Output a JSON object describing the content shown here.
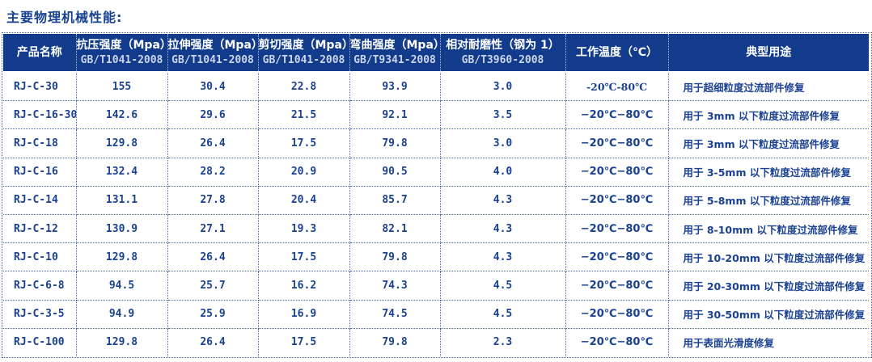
{
  "title": "主要物理机械性能:",
  "colors": {
    "header_bg": "#123b8c",
    "header_text": "#ffffff",
    "header_subtext": "#ccd6ea",
    "body_text": "#1a4192",
    "border": "#4a67ae"
  },
  "table": {
    "headers": [
      {
        "line1": "产品名称",
        "line2": ""
      },
      {
        "line1": "抗压强度（Mpa）",
        "line2": "GB/T1041-2008"
      },
      {
        "line1": "拉伸强度（Mpa）",
        "line2": "GB/T1041-2008"
      },
      {
        "line1": "剪切强度（Mpa）",
        "line2": "GB/T1041-2008"
      },
      {
        "line1": "弯曲强度（Mpa）",
        "line2": "GB/T9341-2008"
      },
      {
        "line1": "相对耐磨性（钢为 1）",
        "line2": "GB/T3960-2008"
      },
      {
        "line1": "工作温度（℃）",
        "line2": ""
      },
      {
        "line1": "典型用途",
        "line2": ""
      }
    ],
    "rows": [
      [
        "RJ-C-30",
        "155",
        "30.4",
        "22.8",
        "93.9",
        "3.0",
        "-20℃-80℃",
        "用于超细粒度过流部件修复"
      ],
      [
        "RJ-C-16-30",
        "142.6",
        "29.6",
        "21.5",
        "92.1",
        "3.5",
        "−20℃−80℃",
        "用于 3mm 以下粒度过流部件修复"
      ],
      [
        "RJ-C-18",
        "129.8",
        "26.4",
        "17.5",
        "79.8",
        "3.0",
        "−20℃−80℃",
        "用于 3mm 以下粒度过流部件修复"
      ],
      [
        "RJ-C-16",
        "132.4",
        "28.2",
        "20.9",
        "90.5",
        "4.0",
        "−20℃−80℃",
        "用于 3-5mm 以下粒度过流部件修复"
      ],
      [
        "RJ-C-14",
        "131.1",
        "27.8",
        "20.4",
        "85.7",
        "4.3",
        "−20℃−80℃",
        "用于 5-8mm 以下粒度过流部件修复"
      ],
      [
        "RJ-C-12",
        "130.9",
        "27.1",
        "19.3",
        "82.1",
        "4.3",
        "−20℃−80℃",
        "用于 8-10mm 以下粒度过流部件修复"
      ],
      [
        "RJ-C-10",
        "129.8",
        "26.4",
        "17.5",
        "79.8",
        "4.3",
        "−20℃−80℃",
        "用于 10-20mm 以下粒度过流部件修复"
      ],
      [
        "RJ-C-6-8",
        "94.5",
        "25.7",
        "16.2",
        "74.3",
        "4.5",
        "−20℃−80℃",
        "用于 20-30mm 以下粒度过流部件修复"
      ],
      [
        "RJ-C-3-5",
        "94.9",
        "25.9",
        "16.9",
        "74.5",
        "4.5",
        "−20℃−80℃",
        "用于 30-50mm 以下粒度过流部件修复"
      ],
      [
        "RJ-C-100",
        "129.8",
        "26.4",
        "17.5",
        "79.8",
        "2.3",
        "−20℃−80℃",
        "用于表面光滑度修复"
      ]
    ],
    "cell_names": [
      "product-name-cell",
      "compressive-strength-cell",
      "tensile-strength-cell",
      "shear-strength-cell",
      "bending-strength-cell",
      "wear-resistance-cell",
      "working-temperature-cell",
      "typical-use-cell"
    ]
  }
}
